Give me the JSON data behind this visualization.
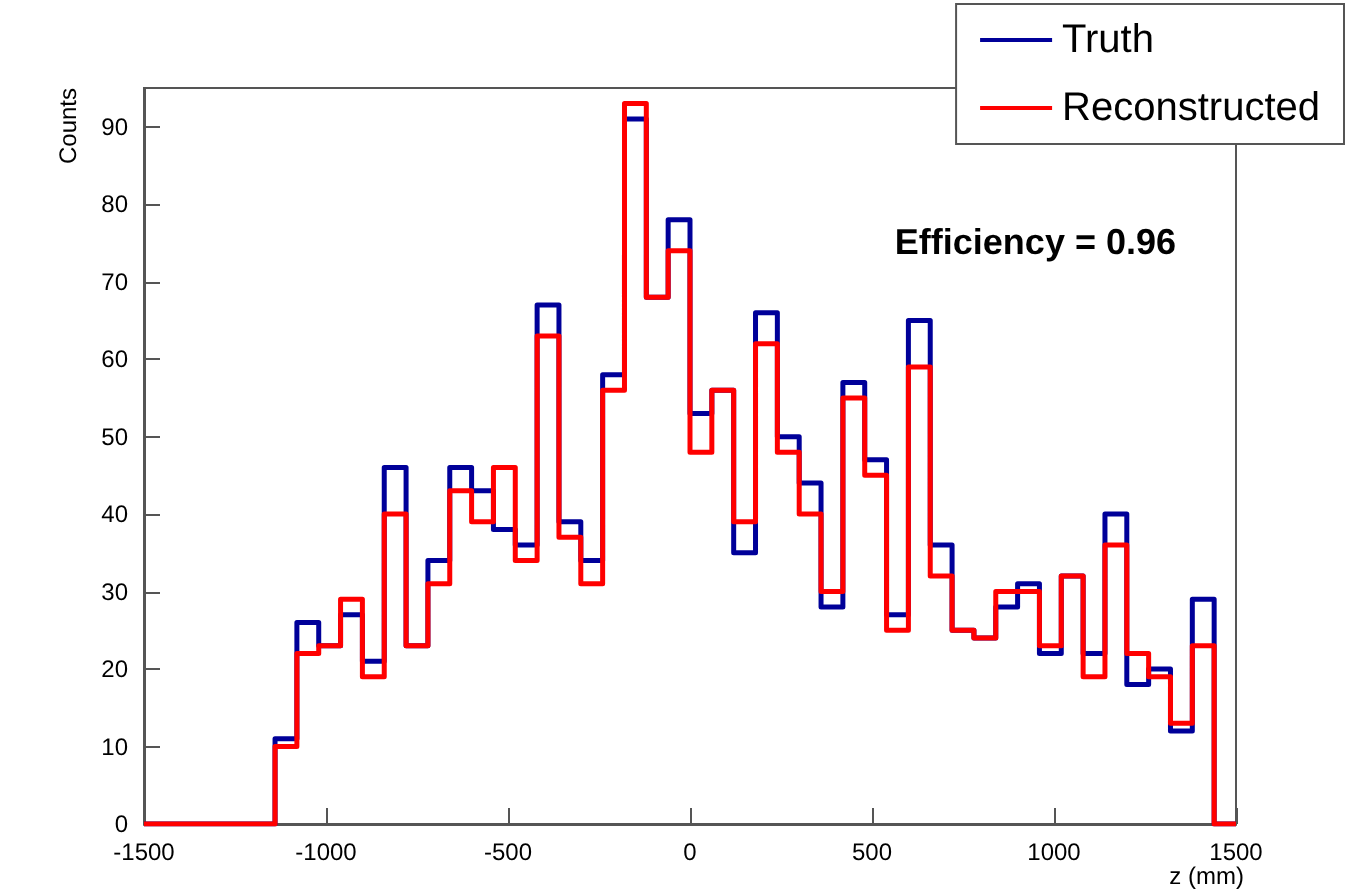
{
  "chart_data": {
    "type": "histogram",
    "xlabel": "z (mm)",
    "ylabel": "Counts",
    "annotations": [
      "Efficiency = 0.96"
    ],
    "bins": [
      -1500,
      -1440,
      -1380,
      -1320,
      -1260,
      -1200,
      -1140,
      -1080,
      -1020,
      -960,
      -900,
      -840,
      -780,
      -720,
      -660,
      -600,
      -540,
      -480,
      -420,
      -360,
      -300,
      -240,
      -180,
      -120,
      -60,
      0,
      60,
      120,
      180,
      240,
      300,
      360,
      420,
      480,
      540,
      600,
      660,
      720,
      780,
      840,
      900,
      960,
      1020,
      1080,
      1140,
      1200,
      1260,
      1320,
      1380,
      1440,
      1500
    ],
    "series": [
      {
        "name": "Truth",
        "color": "#000099",
        "values": [
          0,
          0,
          0,
          0,
          0,
          0,
          11,
          26,
          23,
          27,
          21,
          46,
          23,
          34,
          46,
          43,
          38,
          36,
          67,
          39,
          34,
          58,
          91,
          68,
          78,
          53,
          56,
          35,
          66,
          50,
          44,
          28,
          57,
          47,
          27,
          65,
          36,
          25,
          24,
          28,
          31,
          22,
          32,
          22,
          40,
          18,
          20,
          12,
          29,
          0
        ]
      },
      {
        "name": "Reconstructed",
        "color": "#ff0000",
        "values": [
          0,
          0,
          0,
          0,
          0,
          0,
          10,
          22,
          23,
          29,
          19,
          40,
          23,
          31,
          43,
          39,
          46,
          34,
          63,
          37,
          31,
          56,
          93,
          68,
          74,
          48,
          56,
          39,
          62,
          48,
          40,
          30,
          55,
          45,
          25,
          59,
          32,
          25,
          24,
          30,
          30,
          23,
          32,
          19,
          36,
          22,
          19,
          13,
          23,
          0
        ]
      }
    ],
    "xlim": [
      -1500,
      1500
    ],
    "xticks": [
      -1500,
      -1000,
      -500,
      0,
      500,
      1000,
      1500
    ],
    "ylim": [
      0,
      95
    ],
    "yticks": [
      0,
      10,
      20,
      30,
      40,
      50,
      60,
      70,
      80,
      90
    ],
    "grid": false,
    "legend": "top right"
  }
}
